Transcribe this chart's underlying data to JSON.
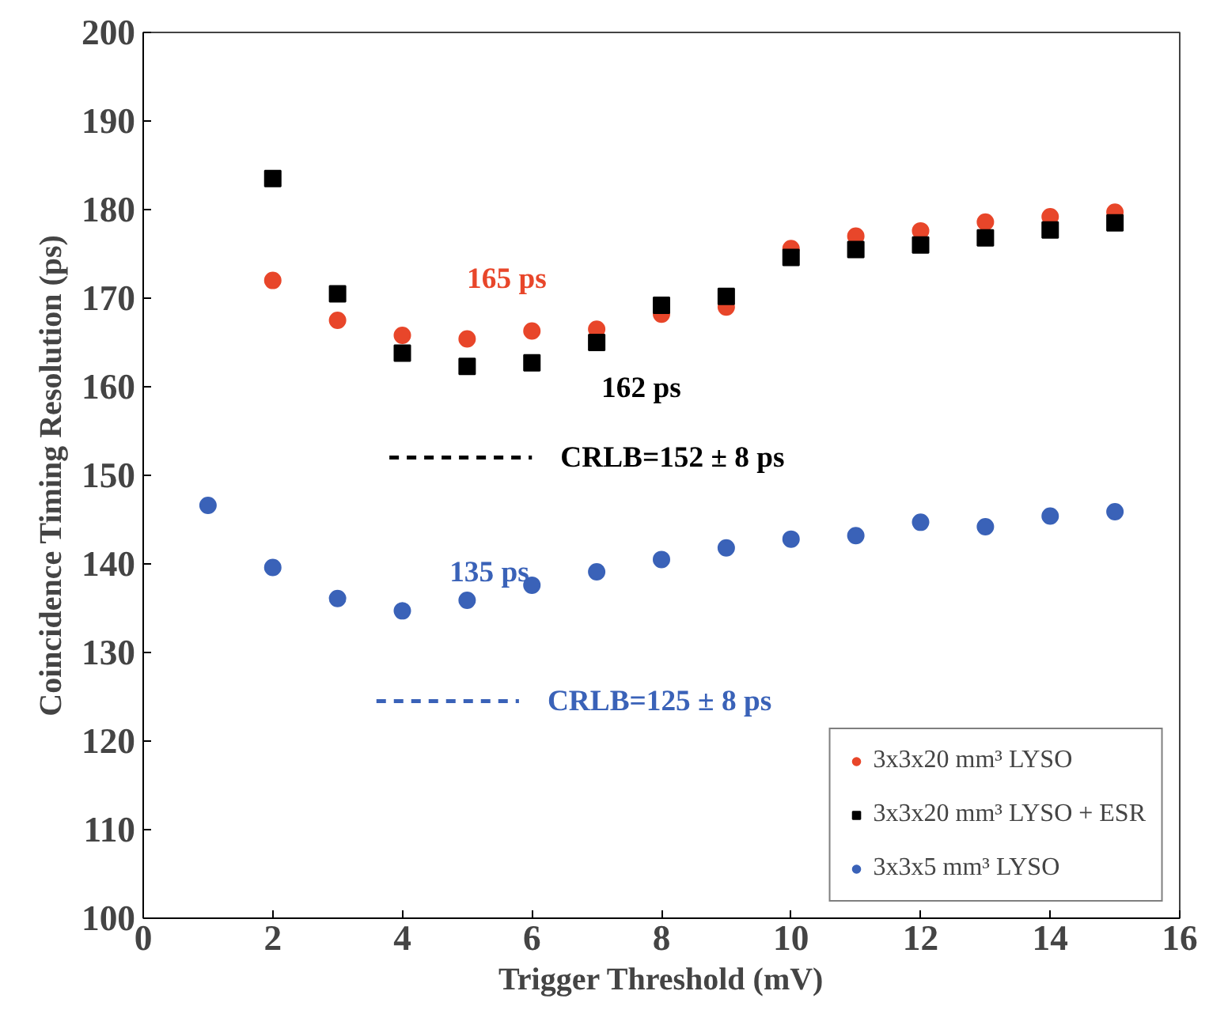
{
  "chart_data": {
    "type": "scatter",
    "xlabel": "Trigger Threshold (mV)",
    "ylabel": "Coincidence Timing Resolution (ps)",
    "xlim": [
      0,
      16
    ],
    "xticks": [
      0,
      2,
      4,
      6,
      8,
      10,
      12,
      14,
      16
    ],
    "ylim": [
      100,
      200
    ],
    "yticks": [
      100,
      110,
      120,
      130,
      140,
      150,
      160,
      170,
      180,
      190,
      200
    ],
    "grid": false,
    "legend": "bottom right",
    "series": [
      {
        "name": "3x3x20 mm³ LYSO",
        "color": "#e8462a",
        "marker": "circle",
        "x": [
          2,
          3,
          4,
          5,
          6,
          7,
          8,
          9,
          10,
          11,
          12,
          13,
          14,
          15
        ],
        "values": [
          172,
          167.5,
          165.8,
          165.4,
          166.3,
          166.5,
          168.2,
          169,
          175.6,
          177,
          177.6,
          178.6,
          179.2,
          179.7
        ]
      },
      {
        "name": "3x3x20 mm³ LYSO + ESR",
        "color": "#000000",
        "marker": "square",
        "x": [
          2,
          3,
          4,
          5,
          6,
          7,
          8,
          9,
          10,
          11,
          12,
          13,
          14,
          15
        ],
        "values": [
          183.5,
          170.5,
          163.8,
          162.3,
          162.7,
          165,
          169.2,
          170.2,
          174.6,
          175.5,
          176,
          176.8,
          177.7,
          178.5
        ]
      },
      {
        "name": "3x3x5 mm³ LYSO",
        "color": "#3a62b8",
        "marker": "circle",
        "x": [
          1,
          2,
          3,
          4,
          5,
          6,
          7,
          8,
          9,
          10,
          11,
          12,
          13,
          14,
          15
        ],
        "values": [
          146.6,
          139.6,
          136.1,
          134.7,
          135.9,
          137.6,
          139.1,
          140.5,
          141.8,
          142.8,
          143.2,
          144.7,
          144.2,
          145.4,
          145.9
        ]
      },
      {
        "type": "line",
        "name": "CRLB=152 ± 8 ps",
        "line_style": "dashed",
        "color": "#000000",
        "x": [
          3.8,
          6.0
        ],
        "values": [
          152,
          152
        ]
      },
      {
        "type": "line",
        "name": "CRLB=125 ± 8 ps",
        "line_style": "dashed",
        "color": "#3a62b8",
        "x": [
          3.6,
          5.8
        ],
        "values": [
          124.5,
          124.5
        ]
      }
    ],
    "annotations": [
      "165 ps",
      "162 ps",
      "135 ps"
    ]
  }
}
